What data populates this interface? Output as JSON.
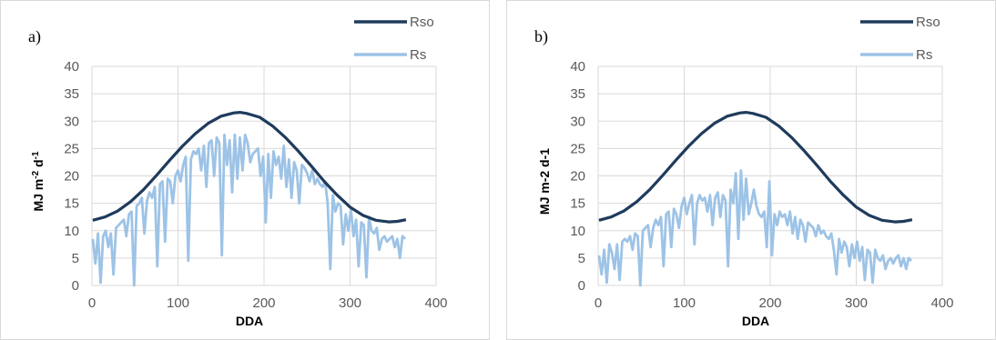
{
  "chart_data": [
    {
      "type": "line",
      "panel_label": "a)",
      "xlabel": "DDA",
      "ylabel_parts": [
        {
          "text": "MJ m",
          "sup": false
        },
        {
          "text": "-2",
          "sup": true
        },
        {
          "text": " d",
          "sup": false
        },
        {
          "text": "-1",
          "sup": true
        }
      ],
      "xlim": [
        0,
        400
      ],
      "ylim": [
        0,
        40
      ],
      "xticks": [
        0,
        100,
        200,
        300,
        400
      ],
      "yticks": [
        0,
        5,
        10,
        15,
        20,
        25,
        30,
        35,
        40
      ],
      "grid": true,
      "legend_position": "top-right",
      "series": [
        {
          "name": "Rso",
          "color": "#1f3b5c",
          "x": [
            1,
            15,
            30,
            45,
            60,
            75,
            90,
            105,
            120,
            135,
            150,
            165,
            172,
            180,
            195,
            210,
            225,
            240,
            255,
            270,
            285,
            300,
            315,
            330,
            345,
            355,
            365
          ],
          "y": [
            11.9,
            12.5,
            13.6,
            15.3,
            17.5,
            20.1,
            22.8,
            25.4,
            27.7,
            29.6,
            30.9,
            31.5,
            31.6,
            31.4,
            30.7,
            29.1,
            27.0,
            24.5,
            21.8,
            19.0,
            16.5,
            14.3,
            12.8,
            11.9,
            11.6,
            11.7,
            12.0
          ]
        },
        {
          "name": "Rs",
          "color": "#9dc3e6",
          "x": [
            1,
            4,
            7,
            10,
            13,
            16,
            19,
            22,
            25,
            28,
            31,
            34,
            37,
            40,
            43,
            46,
            49,
            52,
            55,
            58,
            61,
            64,
            67,
            70,
            73,
            76,
            79,
            82,
            85,
            88,
            91,
            94,
            97,
            100,
            103,
            106,
            109,
            112,
            115,
            118,
            121,
            124,
            127,
            130,
            133,
            136,
            139,
            142,
            145,
            148,
            151,
            154,
            157,
            160,
            163,
            166,
            169,
            172,
            175,
            178,
            181,
            184,
            187,
            190,
            193,
            196,
            199,
            202,
            205,
            208,
            211,
            214,
            217,
            220,
            223,
            226,
            229,
            232,
            235,
            238,
            241,
            244,
            247,
            250,
            253,
            256,
            259,
            262,
            265,
            268,
            271,
            274,
            277,
            280,
            283,
            286,
            289,
            292,
            295,
            298,
            301,
            304,
            307,
            310,
            313,
            316,
            319,
            322,
            325,
            328,
            331,
            334,
            337,
            340,
            343,
            346,
            349,
            352,
            355,
            358,
            361,
            364
          ],
          "y": [
            8.5,
            4.0,
            9.5,
            0.5,
            9.0,
            10.0,
            7.0,
            9.5,
            2.0,
            10.5,
            11.0,
            11.5,
            12.0,
            9.0,
            13.0,
            13.5,
            0.0,
            14.5,
            15.0,
            16.0,
            9.5,
            15.5,
            17.0,
            16.0,
            18.0,
            3.5,
            18.5,
            19.0,
            8.0,
            19.5,
            19.0,
            15.0,
            20.0,
            21.0,
            19.0,
            22.0,
            23.5,
            4.5,
            23.0,
            24.5,
            24.0,
            25.0,
            21.0,
            25.5,
            18.0,
            26.0,
            26.5,
            20.0,
            27.0,
            26.0,
            5.5,
            27.5,
            22.0,
            26.5,
            17.0,
            27.5,
            19.5,
            27.0,
            21.0,
            27.5,
            26.0,
            22.5,
            24.0,
            24.5,
            25.0,
            20.0,
            23.5,
            11.5,
            24.0,
            16.0,
            24.5,
            22.0,
            23.5,
            19.5,
            25.5,
            18.0,
            23.0,
            16.0,
            22.5,
            21.0,
            15.0,
            22.0,
            21.5,
            20.5,
            19.0,
            21.0,
            18.5,
            19.5,
            18.5,
            18.0,
            19.0,
            15.0,
            3.0,
            16.5,
            13.5,
            15.0,
            14.5,
            7.5,
            13.0,
            10.0,
            14.0,
            9.0,
            12.0,
            3.5,
            11.5,
            11.0,
            1.5,
            12.5,
            10.0,
            9.5,
            10.5,
            6.5,
            8.5,
            9.0,
            8.0,
            8.5,
            9.0,
            7.0,
            8.5,
            5.0,
            9.0,
            8.5
          ]
        }
      ]
    },
    {
      "type": "line",
      "panel_label": "b)",
      "xlabel": "DDA",
      "ylabel_parts": [
        {
          "text": "MJ m-2 d-1",
          "sup": false
        }
      ],
      "xlim": [
        0,
        400
      ],
      "ylim": [
        0,
        40
      ],
      "xticks": [
        0,
        100,
        200,
        300,
        400
      ],
      "yticks": [
        0,
        5,
        10,
        15,
        20,
        25,
        30,
        35,
        40
      ],
      "grid": true,
      "legend_position": "top-right",
      "series": [
        {
          "name": "Rso",
          "color": "#1f3b5c",
          "x": [
            1,
            15,
            30,
            45,
            60,
            75,
            90,
            105,
            120,
            135,
            150,
            165,
            172,
            180,
            195,
            210,
            225,
            240,
            255,
            270,
            285,
            300,
            315,
            330,
            345,
            355,
            365
          ],
          "y": [
            11.9,
            12.5,
            13.6,
            15.3,
            17.5,
            20.1,
            22.8,
            25.4,
            27.7,
            29.6,
            30.9,
            31.5,
            31.6,
            31.4,
            30.7,
            29.1,
            27.0,
            24.5,
            21.8,
            19.0,
            16.5,
            14.3,
            12.8,
            11.9,
            11.6,
            11.7,
            12.0
          ]
        },
        {
          "name": "Rs",
          "color": "#9dc3e6",
          "x": [
            1,
            4,
            7,
            10,
            13,
            16,
            19,
            22,
            25,
            28,
            31,
            34,
            37,
            40,
            43,
            46,
            49,
            52,
            55,
            58,
            61,
            64,
            67,
            70,
            73,
            76,
            79,
            82,
            85,
            88,
            91,
            94,
            97,
            100,
            103,
            106,
            109,
            112,
            115,
            118,
            121,
            124,
            127,
            130,
            133,
            136,
            139,
            142,
            145,
            148,
            151,
            154,
            157,
            160,
            163,
            166,
            169,
            172,
            175,
            178,
            181,
            184,
            187,
            190,
            193,
            196,
            199,
            202,
            205,
            208,
            211,
            214,
            217,
            220,
            223,
            226,
            229,
            232,
            235,
            238,
            241,
            244,
            247,
            250,
            253,
            256,
            259,
            262,
            265,
            268,
            271,
            274,
            277,
            280,
            283,
            286,
            289,
            292,
            295,
            298,
            301,
            304,
            307,
            310,
            313,
            316,
            319,
            322,
            325,
            328,
            331,
            334,
            337,
            340,
            343,
            346,
            349,
            352,
            355,
            358,
            361,
            364
          ],
          "y": [
            5.5,
            2.0,
            6.5,
            0.5,
            7.5,
            6.0,
            3.0,
            7.5,
            1.0,
            8.0,
            8.5,
            8.0,
            9.0,
            6.5,
            9.5,
            9.0,
            0.0,
            10.0,
            10.5,
            11.0,
            7.0,
            10.5,
            12.0,
            11.0,
            12.5,
            3.5,
            13.0,
            13.5,
            7.0,
            14.0,
            13.0,
            10.5,
            14.5,
            16.0,
            13.0,
            15.0,
            16.5,
            7.5,
            15.0,
            16.5,
            15.5,
            16.0,
            13.5,
            16.5,
            11.0,
            16.0,
            17.0,
            12.5,
            16.5,
            15.5,
            3.5,
            17.5,
            15.0,
            20.5,
            8.5,
            21.0,
            12.0,
            19.5,
            13.0,
            15.0,
            17.5,
            14.5,
            13.0,
            12.5,
            13.5,
            7.0,
            19.0,
            5.5,
            13.0,
            11.0,
            13.5,
            12.5,
            13.0,
            11.0,
            13.5,
            9.5,
            12.5,
            8.5,
            12.0,
            11.0,
            8.0,
            11.5,
            11.0,
            10.5,
            9.0,
            11.0,
            9.5,
            10.0,
            9.0,
            8.5,
            9.5,
            6.5,
            2.0,
            8.5,
            6.0,
            8.0,
            7.0,
            3.5,
            7.5,
            5.0,
            8.0,
            4.5,
            7.0,
            1.0,
            6.5,
            6.0,
            0.5,
            6.5,
            5.0,
            4.5,
            5.5,
            3.0,
            4.5,
            5.0,
            4.0,
            5.0,
            5.5,
            3.5,
            5.0,
            3.0,
            5.0,
            4.5
          ]
        }
      ]
    }
  ]
}
